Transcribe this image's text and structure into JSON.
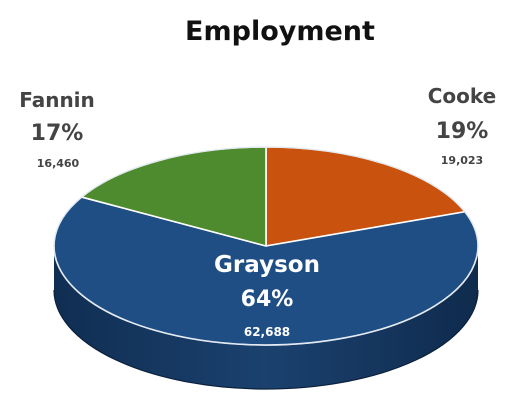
{
  "chart_data": {
    "type": "pie",
    "title": "Employment",
    "slices": [
      {
        "label": "Grayson",
        "percent": "64%",
        "value": 62688,
        "value_label": "62,688",
        "color": "#1f4e85"
      },
      {
        "label": "Fannin",
        "percent": "17%",
        "value": 16460,
        "value_label": "16,460",
        "color": "#4e8a2e"
      },
      {
        "label": "Cooke",
        "percent": "19%",
        "value": 19023,
        "value_label": "19,023",
        "color": "#c9520f"
      }
    ]
  }
}
